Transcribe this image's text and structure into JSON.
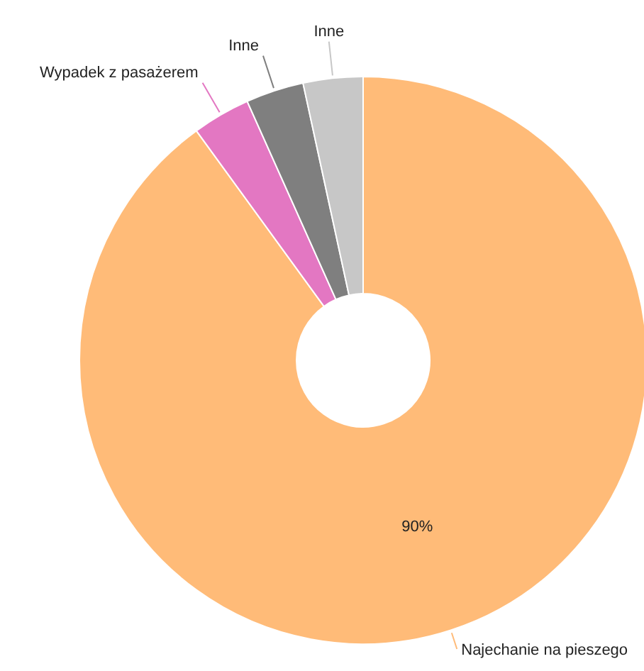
{
  "chart_data": {
    "type": "donut",
    "categories": [
      "Najechanie na pieszego",
      "Wypadek z pasażerem",
      "Inne",
      "Inne"
    ],
    "values": [
      90,
      3.3,
      3.3,
      3.4
    ],
    "colors": [
      "#ffbb78",
      "#e377c2",
      "#7f7f7f",
      "#c7c7c7"
    ],
    "value_labels": [
      "90%",
      null,
      null,
      null
    ],
    "legend": false
  }
}
